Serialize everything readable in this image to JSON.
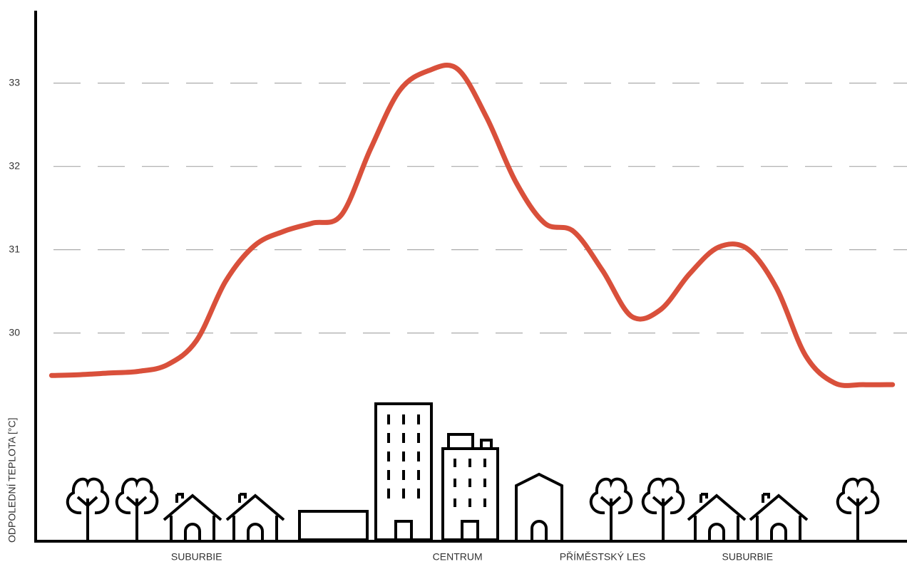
{
  "chart_data": {
    "type": "line",
    "y_label": "ODPOLEDNÍ TEPLOTA [°C]",
    "categories": [
      null,
      null,
      null,
      null,
      null,
      "SUBURBIE",
      null,
      null,
      null,
      null,
      null,
      null,
      null,
      null,
      "CENTRUM",
      null,
      null,
      null,
      null,
      "PŘÍMĚSTSKÝ LES",
      null,
      null,
      null,
      null,
      "SUBURBIE",
      null,
      null,
      null,
      null,
      null
    ],
    "series": [
      {
        "color": "#d9503b",
        "values": [
          29.49,
          29.5,
          29.52,
          29.54,
          29.62,
          29.91,
          30.62,
          31.05,
          31.22,
          31.32,
          31.42,
          32.21,
          32.91,
          33.15,
          33.17,
          32.59,
          31.82,
          31.32,
          31.22,
          30.75,
          30.2,
          30.28,
          30.71,
          31.03,
          31.01,
          30.54,
          29.73,
          29.4,
          29.38,
          29.38
        ]
      }
    ],
    "ylim": [
      27.5,
      33.87
    ],
    "yticks": [
      30,
      31,
      32,
      33
    ],
    "grid": true
  }
}
